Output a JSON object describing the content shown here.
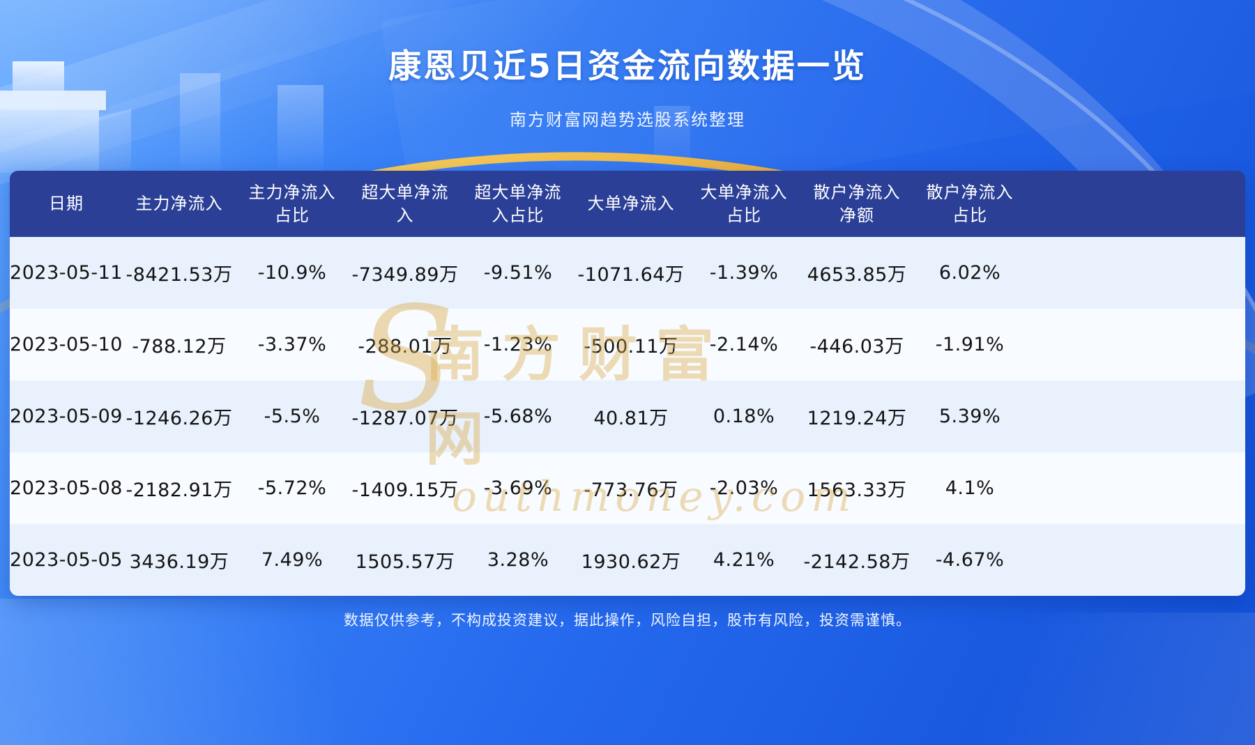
{
  "page": {
    "title": "康恩贝近5日资金流向数据一览",
    "subtitle": "南方财富网趋势选股系统整理",
    "footer": "数据仅供参考，不构成投资建议，据此操作，风险自担，股市有风险，投资需谨慎。"
  },
  "watermark": {
    "initial": "S",
    "cn": "南方财富网",
    "en": "outhmoney.com"
  },
  "colors": {
    "background_top": "#3c86f8",
    "background_bottom": "#114fd7",
    "table_header": "#2b3f96",
    "row_odd": "#e9f1fc",
    "row_even": "#f8fbff",
    "accent_gold": "#e8b64c",
    "text_dark": "#121212",
    "text_light": "#ffffff"
  },
  "chart_data": {
    "type": "table",
    "title": "康恩贝近5日资金流向数据一览",
    "columns": [
      "日期",
      "主力净流入",
      "主力净流入\n占比",
      "超大单净流\n入",
      "超大单净流\n入占比",
      "大单净流入",
      "大单净流入\n占比",
      "散户净流入\n净额",
      "散户净流入\n占比"
    ],
    "rows": [
      [
        "2023-05-11",
        "-8421.53万",
        "-10.9%",
        "-7349.89万",
        "-9.51%",
        "-1071.64万",
        "-1.39%",
        "4653.85万",
        "6.02%"
      ],
      [
        "2023-05-10",
        "-788.12万",
        "-3.37%",
        "-288.01万",
        "-1.23%",
        "-500.11万",
        "-2.14%",
        "-446.03万",
        "-1.91%"
      ],
      [
        "2023-05-09",
        "-1246.26万",
        "-5.5%",
        "-1287.07万",
        "-5.68%",
        "40.81万",
        "0.18%",
        "1219.24万",
        "5.39%"
      ],
      [
        "2023-05-08",
        "-2182.91万",
        "-5.72%",
        "-1409.15万",
        "-3.69%",
        "-773.76万",
        "-2.03%",
        "1563.33万",
        "4.1%"
      ],
      [
        "2023-05-05",
        "3436.19万",
        "7.49%",
        "1505.57万",
        "3.28%",
        "1930.62万",
        "4.21%",
        "-2142.58万",
        "-4.67%"
      ]
    ]
  }
}
